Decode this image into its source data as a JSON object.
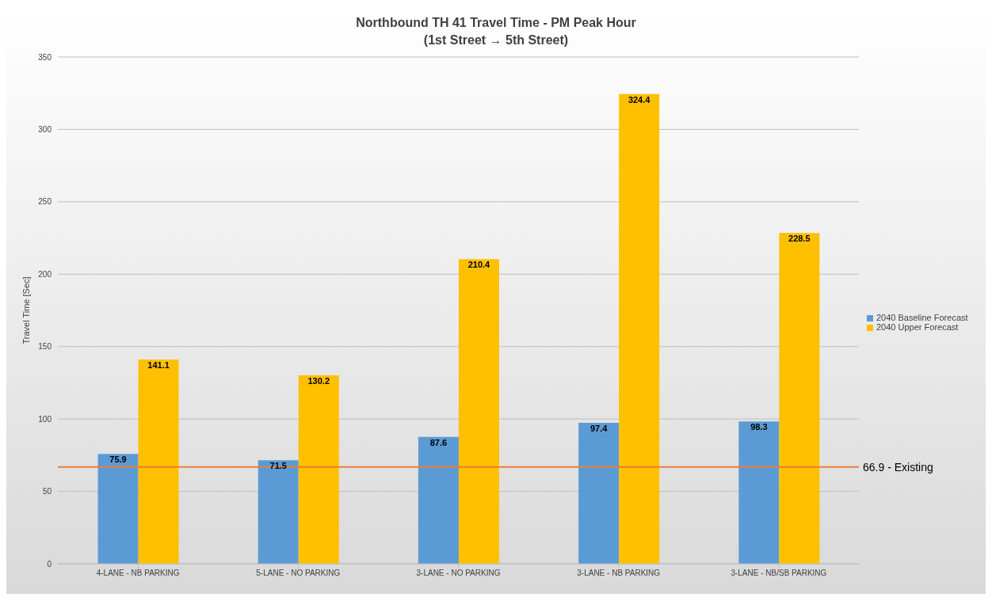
{
  "chart_data": {
    "type": "bar",
    "title": "Northbound TH 41 Travel Time - PM Peak Hour",
    "subtitle": "(1st Street → 5th Street)",
    "ylabel": "Travel Time [Sec]",
    "categories": [
      "4-LANE - NB PARKING",
      "5-LANE - NO PARKING",
      "3-LANE - NO PARKING",
      "3-LANE - NB PARKING",
      "3-LANE - NB/SB PARKING"
    ],
    "series": [
      {
        "name": "2040 Baseline Forecast",
        "color": "#5b9bd5",
        "values": [
          75.9,
          71.5,
          87.6,
          97.4,
          98.3
        ]
      },
      {
        "name": "2040 Upper Forecast",
        "color": "#ffc000",
        "values": [
          141.1,
          130.2,
          210.4,
          324.4,
          228.5
        ]
      }
    ],
    "ylim": [
      0,
      350
    ],
    "yticks": [
      0,
      50,
      100,
      150,
      200,
      250,
      300,
      350
    ],
    "grid": "y",
    "legend": "right",
    "data_labels": true,
    "ref_lines": [
      {
        "axis": "y",
        "value": 66.9,
        "label": "66.9 - Existing",
        "color": "#ed7d31"
      }
    ]
  }
}
